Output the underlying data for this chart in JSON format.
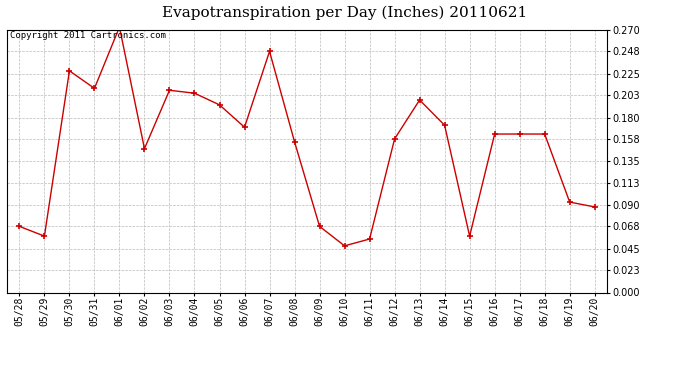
{
  "title": "Evapotranspiration per Day (Inches) 20110621",
  "copyright_text": "Copyright 2011 Cartronics.com",
  "labels": [
    "05/28",
    "05/29",
    "05/30",
    "05/31",
    "06/01",
    "06/02",
    "06/03",
    "06/04",
    "06/05",
    "06/06",
    "06/07",
    "06/08",
    "06/09",
    "06/10",
    "06/11",
    "06/12",
    "06/13",
    "06/14",
    "06/15",
    "06/16",
    "06/17",
    "06/18",
    "06/19",
    "06/20"
  ],
  "values": [
    0.068,
    0.058,
    0.228,
    0.21,
    0.273,
    0.148,
    0.208,
    0.205,
    0.193,
    0.17,
    0.248,
    0.155,
    0.068,
    0.048,
    0.055,
    0.158,
    0.198,
    0.172,
    0.058,
    0.163,
    0.163,
    0.163,
    0.093,
    0.088
  ],
  "line_color": "#cc0000",
  "marker": "+",
  "bg_color": "#ffffff",
  "plot_bg_color": "#ffffff",
  "grid_color": "#bbbbbb",
  "ylim": [
    0.0,
    0.27
  ],
  "yticks": [
    0.0,
    0.023,
    0.045,
    0.068,
    0.09,
    0.113,
    0.135,
    0.158,
    0.18,
    0.203,
    0.225,
    0.248,
    0.27
  ],
  "title_fontsize": 11,
  "copyright_fontsize": 6.5,
  "tick_fontsize": 7,
  "marker_size": 4,
  "linewidth": 1.0
}
